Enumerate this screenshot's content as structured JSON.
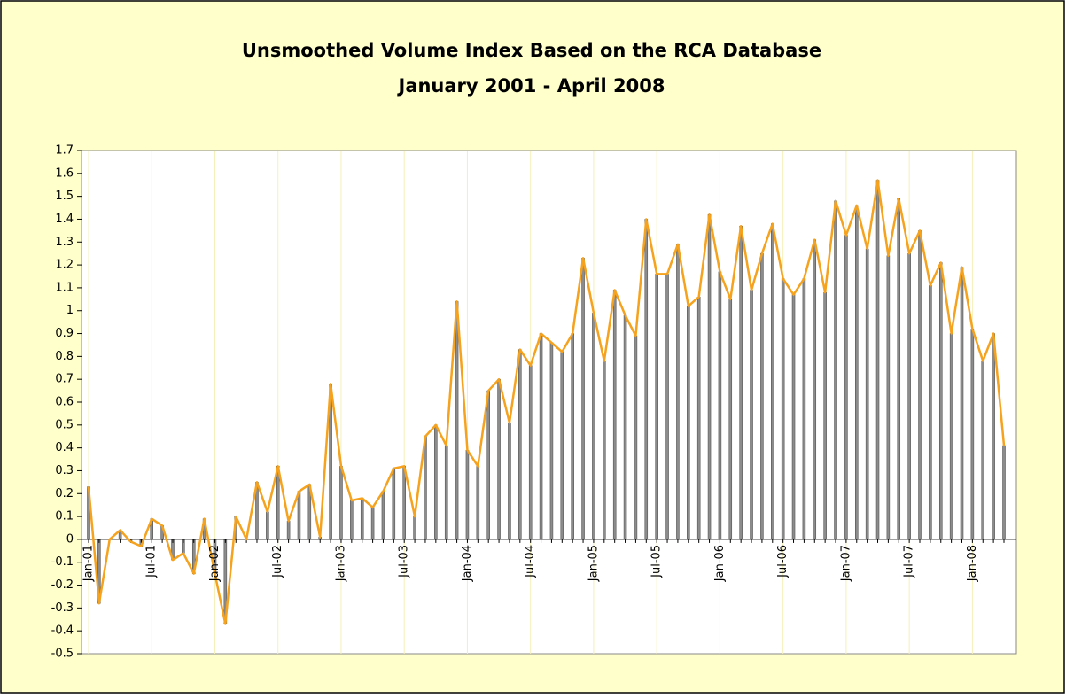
{
  "chart_data": {
    "type": "bar-line",
    "title": "Unsmoothed Volume Index Based on the RCA Database",
    "subtitle": "January 2001 - April 2008",
    "categories": [
      "Jan-01",
      null,
      null,
      null,
      null,
      null,
      "Jul-01",
      null,
      null,
      null,
      null,
      null,
      "Jan-02",
      null,
      null,
      null,
      null,
      null,
      "Jul-02",
      null,
      null,
      null,
      null,
      null,
      "Jan-03",
      null,
      null,
      null,
      null,
      null,
      "Jul-03",
      null,
      null,
      null,
      null,
      null,
      "Jan-04",
      null,
      null,
      null,
      null,
      null,
      "Jul-04",
      null,
      null,
      null,
      null,
      null,
      "Jan-05",
      null,
      null,
      null,
      null,
      null,
      "Jul-05",
      null,
      null,
      null,
      null,
      null,
      "Jan-06",
      null,
      null,
      null,
      null,
      null,
      "Jul-06",
      null,
      null,
      null,
      null,
      null,
      "Jan-07",
      null,
      null,
      null,
      null,
      null,
      "Jul-07",
      null,
      null,
      null,
      null,
      null,
      "Jan-08",
      null,
      null,
      null
    ],
    "values": [
      0.23,
      -0.28,
      0.0,
      0.04,
      -0.01,
      -0.03,
      0.09,
      0.06,
      -0.09,
      -0.06,
      -0.15,
      0.09,
      -0.15,
      -0.37,
      0.1,
      0.0,
      0.25,
      0.12,
      0.32,
      0.08,
      0.21,
      0.24,
      0.01,
      0.68,
      0.32,
      0.17,
      0.18,
      0.14,
      0.21,
      0.31,
      0.32,
      0.1,
      0.45,
      0.5,
      0.41,
      1.04,
      0.39,
      0.32,
      0.65,
      0.7,
      0.51,
      0.83,
      0.76,
      0.9,
      0.86,
      0.82,
      0.9,
      1.23,
      0.99,
      0.78,
      1.09,
      0.98,
      0.89,
      1.4,
      1.16,
      1.16,
      1.29,
      1.02,
      1.06,
      1.42,
      1.17,
      1.05,
      1.37,
      1.09,
      1.25,
      1.38,
      1.14,
      1.07,
      1.14,
      1.31,
      1.08,
      1.48,
      1.33,
      1.46,
      1.27,
      1.57,
      1.24,
      1.49,
      1.25,
      1.35,
      1.11,
      1.21,
      0.9,
      1.19,
      0.92,
      0.78,
      0.9,
      0.41
    ],
    "color": "#f5a21e",
    "bar_color": "#8c8c8c",
    "ylim": [
      -0.5,
      1.7
    ],
    "yticks": [
      -0.5,
      -0.4,
      -0.3,
      -0.2,
      -0.1,
      0,
      0.1,
      0.2,
      0.3,
      0.4,
      0.5,
      0.6,
      0.7,
      0.8,
      0.9,
      1,
      1.1,
      1.2,
      1.3,
      1.4,
      1.5,
      1.6,
      1.7
    ],
    "grid": true
  }
}
